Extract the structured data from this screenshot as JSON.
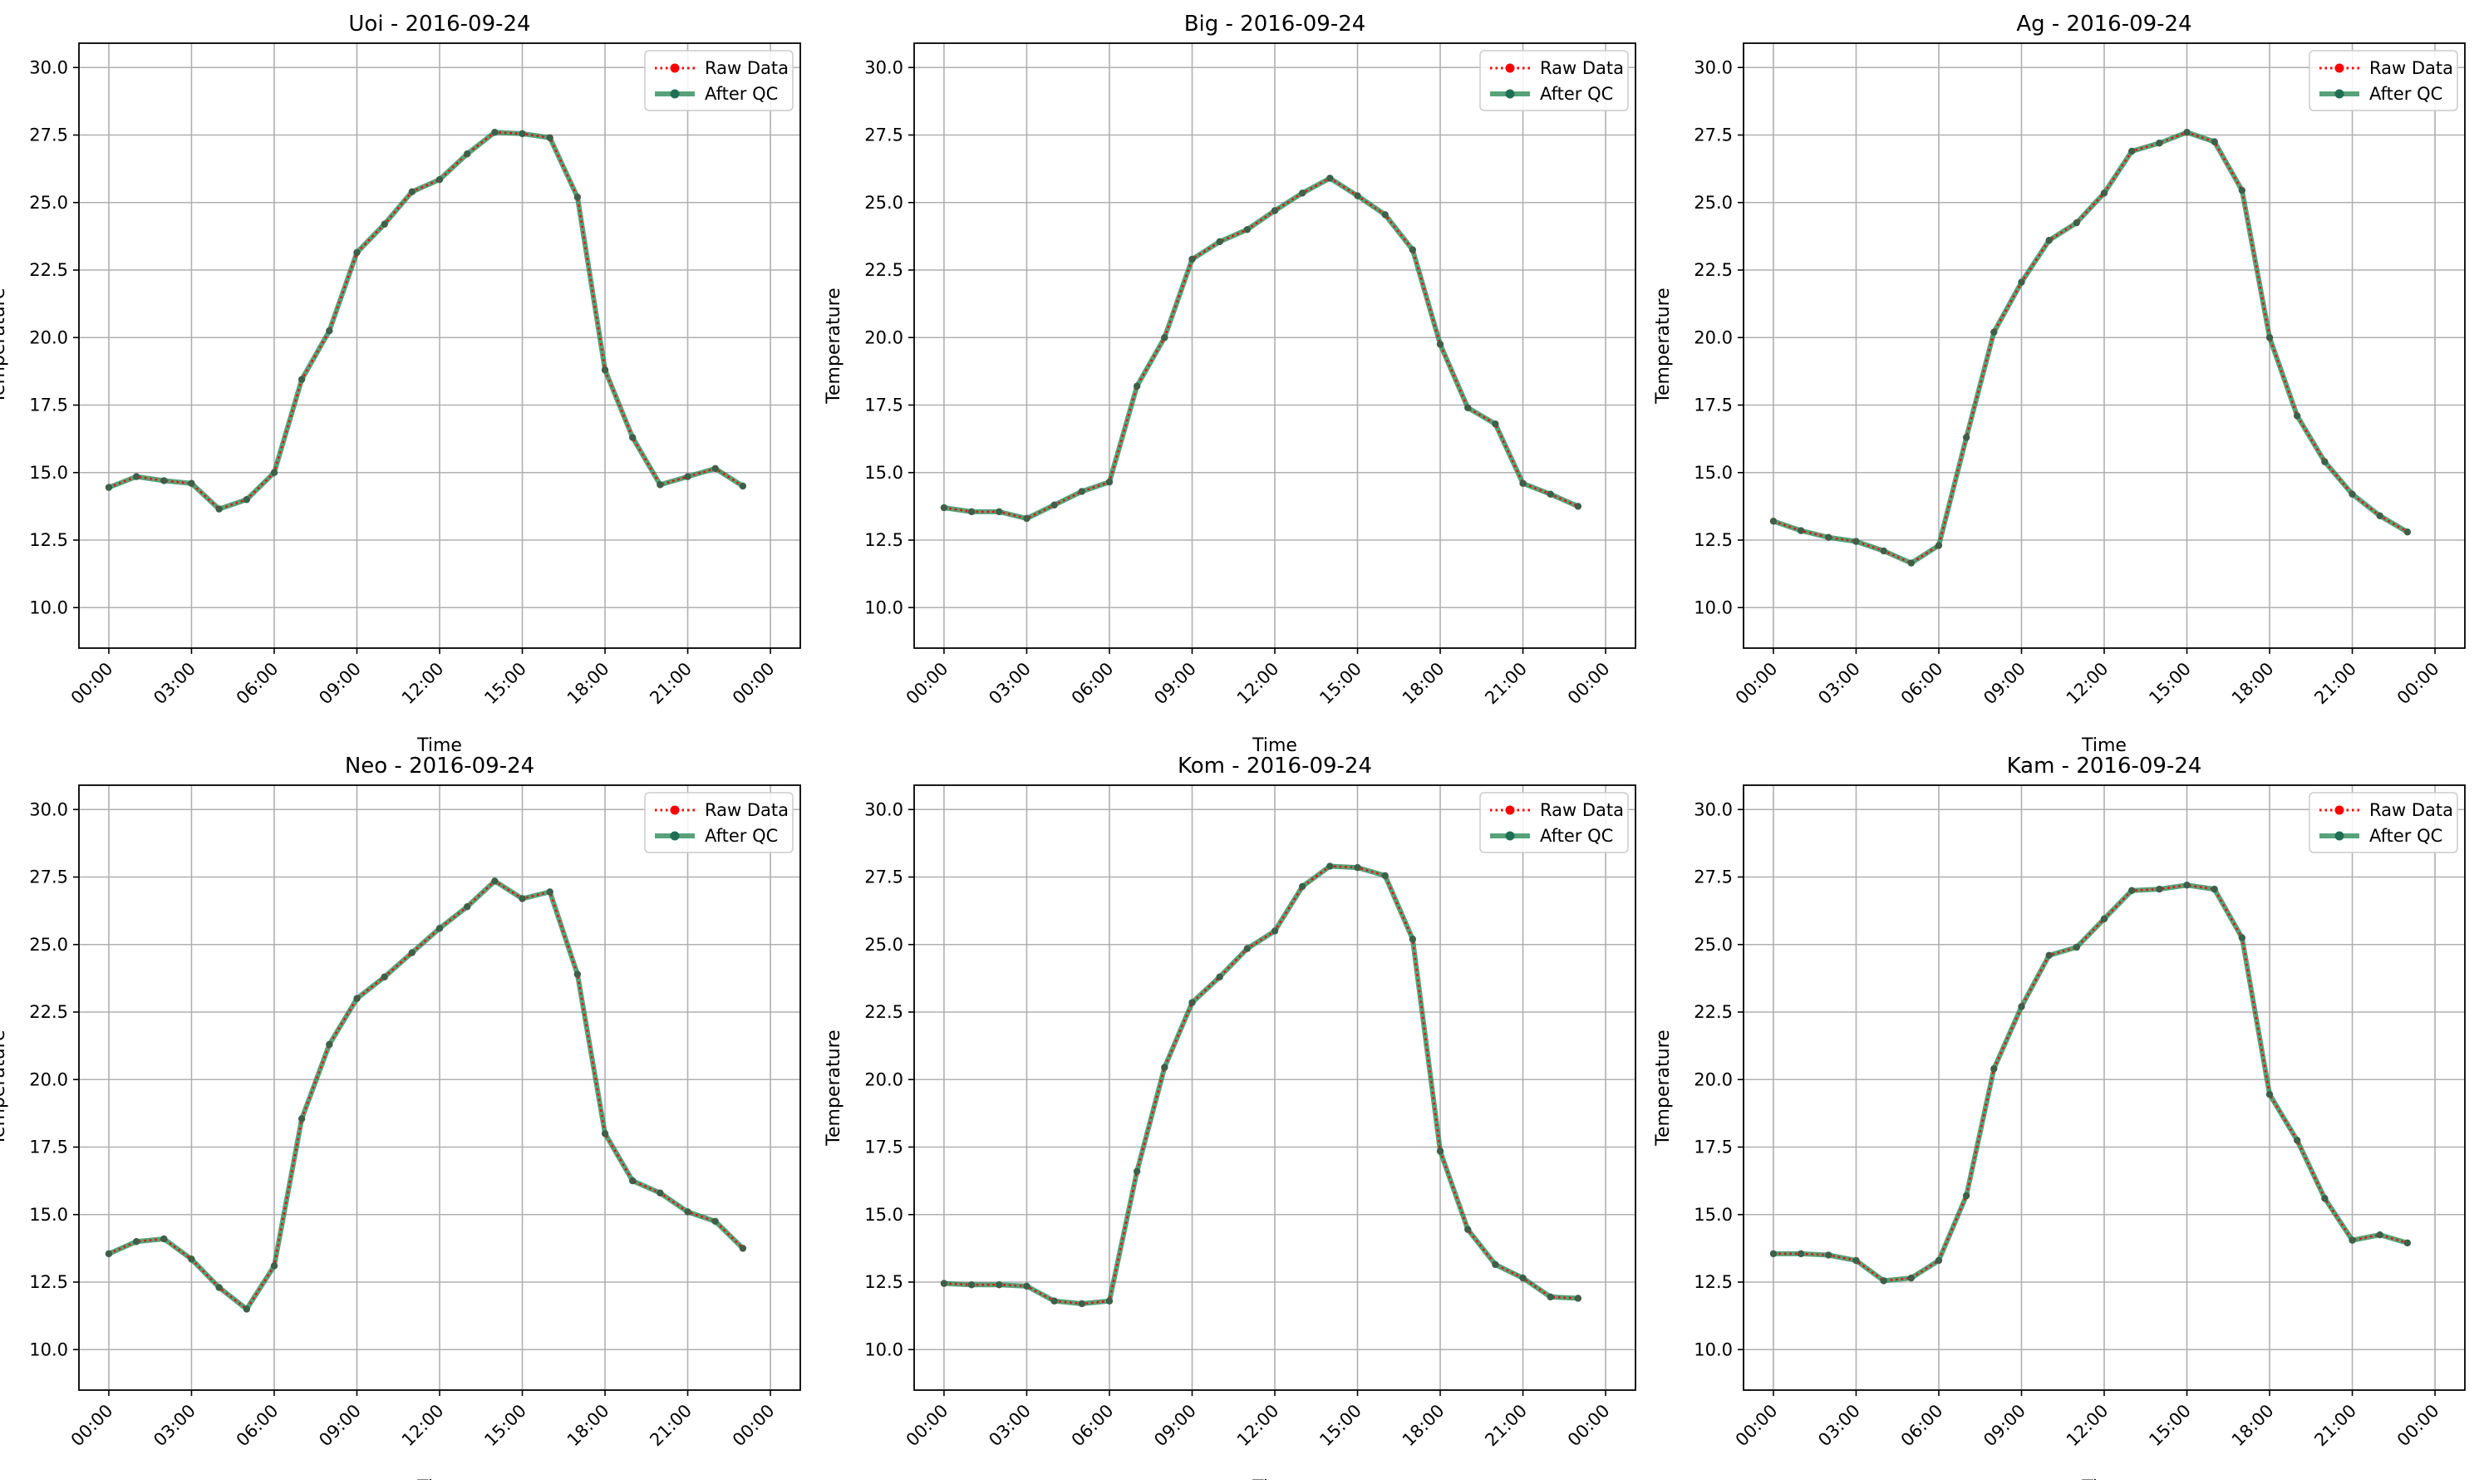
{
  "chart_data": [
    {
      "type": "line",
      "title": "Uoi - 2016-09-24",
      "xlabel": "Time",
      "ylabel": "Temperature",
      "ylim": [
        8.5,
        30.9
      ],
      "yticks": [
        "10.0",
        "12.5",
        "15.0",
        "17.5",
        "20.0",
        "22.5",
        "25.0",
        "27.5",
        "30.0"
      ],
      "xticks": [
        "00:00",
        "03:00",
        "06:00",
        "09:00",
        "12:00",
        "15:00",
        "18:00",
        "21:00",
        "00:00"
      ],
      "x": [
        "00:00",
        "01:00",
        "02:00",
        "03:00",
        "04:00",
        "05:00",
        "06:00",
        "07:00",
        "08:00",
        "09:00",
        "10:00",
        "11:00",
        "12:00",
        "13:00",
        "14:00",
        "15:00",
        "16:00",
        "17:00",
        "18:00",
        "19:00",
        "20:00",
        "21:00",
        "22:00",
        "23:00"
      ],
      "grid": true,
      "legend_position": "top-right",
      "series": [
        {
          "name": "Raw Data",
          "color": "#ff0000",
          "values": [
            14.45,
            14.85,
            14.7,
            14.6,
            13.65,
            14.0,
            15.0,
            18.45,
            20.25,
            23.15,
            24.2,
            25.4,
            25.85,
            26.8,
            27.6,
            27.55,
            27.4,
            25.2,
            18.8,
            16.3,
            14.55,
            14.85,
            15.15,
            14.5
          ]
        },
        {
          "name": "After QC",
          "color": "#2e8b57",
          "values": [
            14.45,
            14.85,
            14.7,
            14.6,
            13.65,
            14.0,
            15.0,
            18.45,
            20.25,
            23.15,
            24.2,
            25.4,
            25.85,
            26.8,
            27.6,
            27.55,
            27.4,
            25.2,
            18.8,
            16.3,
            14.55,
            14.85,
            15.15,
            14.5
          ]
        }
      ]
    },
    {
      "type": "line",
      "title": "Big - 2016-09-24",
      "xlabel": "Time",
      "ylabel": "Temperature",
      "ylim": [
        8.5,
        30.9
      ],
      "yticks": [
        "10.0",
        "12.5",
        "15.0",
        "17.5",
        "20.0",
        "22.5",
        "25.0",
        "27.5",
        "30.0"
      ],
      "xticks": [
        "00:00",
        "03:00",
        "06:00",
        "09:00",
        "12:00",
        "15:00",
        "18:00",
        "21:00",
        "00:00"
      ],
      "x": [
        "00:00",
        "01:00",
        "02:00",
        "03:00",
        "04:00",
        "05:00",
        "06:00",
        "07:00",
        "08:00",
        "09:00",
        "10:00",
        "11:00",
        "12:00",
        "13:00",
        "14:00",
        "15:00",
        "16:00",
        "17:00",
        "18:00",
        "19:00",
        "20:00",
        "21:00",
        "22:00",
        "23:00"
      ],
      "grid": true,
      "legend_position": "top-right",
      "series": [
        {
          "name": "Raw Data",
          "color": "#ff0000",
          "values": [
            13.7,
            13.55,
            13.55,
            13.3,
            13.8,
            14.3,
            14.65,
            18.2,
            20.0,
            22.9,
            23.55,
            24.0,
            24.7,
            25.35,
            25.9,
            25.25,
            24.55,
            23.25,
            19.75,
            17.4,
            16.8,
            14.6,
            14.2,
            13.75
          ]
        },
        {
          "name": "After QC",
          "color": "#2e8b57",
          "values": [
            13.7,
            13.55,
            13.55,
            13.3,
            13.8,
            14.3,
            14.65,
            18.2,
            20.0,
            22.9,
            23.55,
            24.0,
            24.7,
            25.35,
            25.9,
            25.25,
            24.55,
            23.25,
            19.75,
            17.4,
            16.8,
            14.6,
            14.2,
            13.75
          ]
        }
      ]
    },
    {
      "type": "line",
      "title": "Ag - 2016-09-24",
      "xlabel": "Time",
      "ylabel": "Temperature",
      "ylim": [
        8.5,
        30.9
      ],
      "yticks": [
        "10.0",
        "12.5",
        "15.0",
        "17.5",
        "20.0",
        "22.5",
        "25.0",
        "27.5",
        "30.0"
      ],
      "xticks": [
        "00:00",
        "03:00",
        "06:00",
        "09:00",
        "12:00",
        "15:00",
        "18:00",
        "21:00",
        "00:00"
      ],
      "x": [
        "00:00",
        "01:00",
        "02:00",
        "03:00",
        "04:00",
        "05:00",
        "06:00",
        "07:00",
        "08:00",
        "09:00",
        "10:00",
        "11:00",
        "12:00",
        "13:00",
        "14:00",
        "15:00",
        "16:00",
        "17:00",
        "18:00",
        "19:00",
        "20:00",
        "21:00",
        "22:00",
        "23:00"
      ],
      "grid": true,
      "legend_position": "top-right",
      "series": [
        {
          "name": "Raw Data",
          "color": "#ff0000",
          "values": [
            13.2,
            12.85,
            12.6,
            12.45,
            12.1,
            11.65,
            12.3,
            16.3,
            20.2,
            22.05,
            23.6,
            24.25,
            25.35,
            26.9,
            27.2,
            27.6,
            27.25,
            25.45,
            20.0,
            17.1,
            15.4,
            14.2,
            13.4,
            12.8
          ]
        },
        {
          "name": "After QC",
          "color": "#2e8b57",
          "values": [
            13.2,
            12.85,
            12.6,
            12.45,
            12.1,
            11.65,
            12.3,
            16.3,
            20.2,
            22.05,
            23.6,
            24.25,
            25.35,
            26.9,
            27.2,
            27.6,
            27.25,
            25.45,
            20.0,
            17.1,
            15.4,
            14.2,
            13.4,
            12.8
          ]
        }
      ]
    },
    {
      "type": "line",
      "title": "Neo - 2016-09-24",
      "xlabel": "Time",
      "ylabel": "Temperature",
      "ylim": [
        8.5,
        30.9
      ],
      "yticks": [
        "10.0",
        "12.5",
        "15.0",
        "17.5",
        "20.0",
        "22.5",
        "25.0",
        "27.5",
        "30.0"
      ],
      "xticks": [
        "00:00",
        "03:00",
        "06:00",
        "09:00",
        "12:00",
        "15:00",
        "18:00",
        "21:00",
        "00:00"
      ],
      "x": [
        "00:00",
        "01:00",
        "02:00",
        "03:00",
        "04:00",
        "05:00",
        "06:00",
        "07:00",
        "08:00",
        "09:00",
        "10:00",
        "11:00",
        "12:00",
        "13:00",
        "14:00",
        "15:00",
        "16:00",
        "17:00",
        "18:00",
        "19:00",
        "20:00",
        "21:00",
        "22:00",
        "23:00"
      ],
      "grid": true,
      "legend_position": "top-right",
      "series": [
        {
          "name": "Raw Data",
          "color": "#ff0000",
          "values": [
            13.55,
            14.0,
            14.1,
            13.35,
            12.3,
            11.5,
            13.1,
            18.55,
            21.3,
            23.0,
            23.8,
            24.7,
            25.6,
            26.4,
            27.35,
            26.7,
            26.95,
            23.9,
            18.0,
            16.25,
            15.8,
            15.1,
            14.75,
            13.75
          ]
        },
        {
          "name": "After QC",
          "color": "#2e8b57",
          "values": [
            13.55,
            14.0,
            14.1,
            13.35,
            12.3,
            11.5,
            13.1,
            18.55,
            21.3,
            23.0,
            23.8,
            24.7,
            25.6,
            26.4,
            27.35,
            26.7,
            26.95,
            23.9,
            18.0,
            16.25,
            15.8,
            15.1,
            14.75,
            13.75
          ]
        }
      ]
    },
    {
      "type": "line",
      "title": "Kom - 2016-09-24",
      "xlabel": "Time",
      "ylabel": "Temperature",
      "ylim": [
        8.5,
        30.9
      ],
      "yticks": [
        "10.0",
        "12.5",
        "15.0",
        "17.5",
        "20.0",
        "22.5",
        "25.0",
        "27.5",
        "30.0"
      ],
      "xticks": [
        "00:00",
        "03:00",
        "06:00",
        "09:00",
        "12:00",
        "15:00",
        "18:00",
        "21:00",
        "00:00"
      ],
      "x": [
        "00:00",
        "01:00",
        "02:00",
        "03:00",
        "04:00",
        "05:00",
        "06:00",
        "07:00",
        "08:00",
        "09:00",
        "10:00",
        "11:00",
        "12:00",
        "13:00",
        "14:00",
        "15:00",
        "16:00",
        "17:00",
        "18:00",
        "19:00",
        "20:00",
        "21:00",
        "22:00",
        "23:00"
      ],
      "grid": true,
      "legend_position": "top-right",
      "series": [
        {
          "name": "Raw Data",
          "color": "#ff0000",
          "values": [
            12.45,
            12.4,
            12.4,
            12.35,
            11.8,
            11.7,
            11.8,
            16.6,
            20.45,
            22.85,
            23.8,
            24.85,
            25.5,
            27.15,
            27.9,
            27.85,
            27.55,
            25.2,
            17.35,
            14.45,
            13.15,
            12.65,
            11.95,
            11.9
          ]
        },
        {
          "name": "After QC",
          "color": "#2e8b57",
          "values": [
            12.45,
            12.4,
            12.4,
            12.35,
            11.8,
            11.7,
            11.8,
            16.6,
            20.45,
            22.85,
            23.8,
            24.85,
            25.5,
            27.15,
            27.9,
            27.85,
            27.55,
            25.2,
            17.35,
            14.45,
            13.15,
            12.65,
            11.95,
            11.9
          ]
        }
      ]
    },
    {
      "type": "line",
      "title": "Kam - 2016-09-24",
      "xlabel": "Time",
      "ylabel": "Temperature",
      "ylim": [
        8.5,
        30.9
      ],
      "yticks": [
        "10.0",
        "12.5",
        "15.0",
        "17.5",
        "20.0",
        "22.5",
        "25.0",
        "27.5",
        "30.0"
      ],
      "xticks": [
        "00:00",
        "03:00",
        "06:00",
        "09:00",
        "12:00",
        "15:00",
        "18:00",
        "21:00",
        "00:00"
      ],
      "x": [
        "00:00",
        "01:00",
        "02:00",
        "03:00",
        "04:00",
        "05:00",
        "06:00",
        "07:00",
        "08:00",
        "09:00",
        "10:00",
        "11:00",
        "12:00",
        "13:00",
        "14:00",
        "15:00",
        "16:00",
        "17:00",
        "18:00",
        "19:00",
        "20:00",
        "21:00",
        "22:00",
        "23:00"
      ],
      "grid": true,
      "legend_position": "top-right",
      "series": [
        {
          "name": "Raw Data",
          "color": "#ff0000",
          "values": [
            13.55,
            13.55,
            13.5,
            13.3,
            12.55,
            12.65,
            13.3,
            15.7,
            20.4,
            22.7,
            24.6,
            24.9,
            25.95,
            27.0,
            27.05,
            27.2,
            27.05,
            25.25,
            19.45,
            17.75,
            15.6,
            14.05,
            14.25,
            13.95
          ]
        },
        {
          "name": "After QC",
          "color": "#2e8b57",
          "values": [
            13.55,
            13.55,
            13.5,
            13.3,
            12.55,
            12.65,
            13.3,
            15.7,
            20.4,
            22.7,
            24.6,
            24.9,
            25.95,
            27.0,
            27.05,
            27.2,
            27.05,
            25.25,
            19.45,
            17.75,
            15.6,
            14.05,
            14.25,
            13.95
          ]
        }
      ]
    }
  ]
}
